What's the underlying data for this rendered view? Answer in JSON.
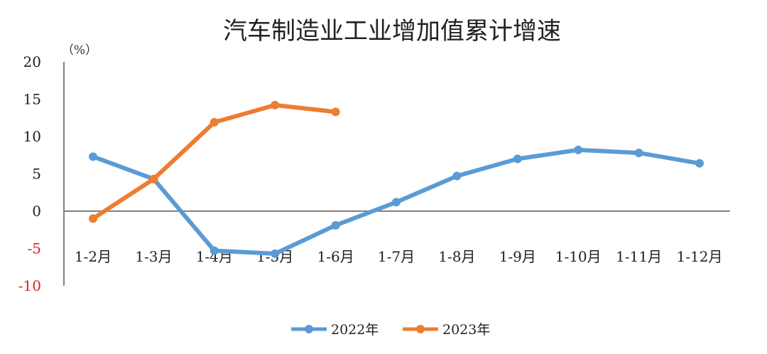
{
  "chart_data": {
    "type": "line",
    "title": "汽车制造业工业增加值累计增速",
    "ylabel": "（%）",
    "categories": [
      "1-2月",
      "1-3月",
      "1-4月",
      "1-5月",
      "1-6月",
      "1-7月",
      "1-8月",
      "1-9月",
      "1-10月",
      "1-11月",
      "1-12月"
    ],
    "ylim": [
      -10,
      20
    ],
    "yticks": [
      20,
      15,
      10,
      5,
      0,
      -5,
      -10
    ],
    "negative_tick_color": "#e02020",
    "grid": false,
    "legend": "bottom",
    "series": [
      {
        "name": "2022年",
        "color": "#5b9bd5",
        "values": [
          7.3,
          4.3,
          -5.3,
          -5.7,
          -1.9,
          1.2,
          4.7,
          7.0,
          8.2,
          7.8,
          6.4
        ]
      },
      {
        "name": "2023年",
        "color": "#ed7d31",
        "values": [
          -1.0,
          4.3,
          11.9,
          14.2,
          13.3,
          null,
          null,
          null,
          null,
          null,
          null
        ]
      }
    ]
  }
}
